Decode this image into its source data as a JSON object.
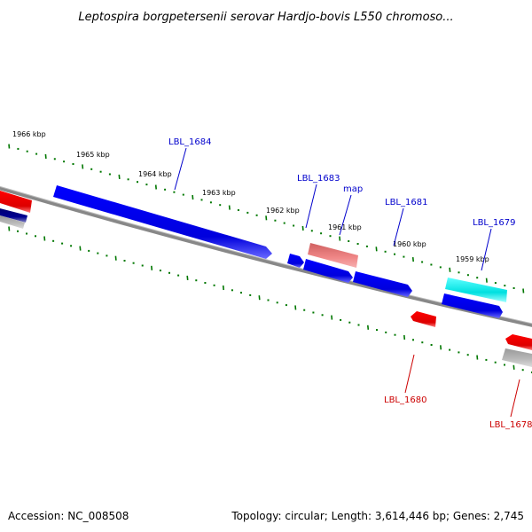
{
  "title": "Leptospira borgpetersenii serovar Hardjo-bovis L550 chromoso...",
  "tick_labels": [
    "1966 kbp",
    "1965 kbp",
    "1964 kbp",
    "1963 kbp",
    "1962 kbp",
    "1961 kbp",
    "1960 kbp",
    "1959 kbp"
  ],
  "gene_labels": {
    "LBL_1684": "LBL_1684",
    "LBL_1683": "LBL_1683",
    "map": "map",
    "LBL_1681": "LBL_1681",
    "LBL_1679": "LBL_1679",
    "LBL_1680": "LBL_1680",
    "LBL_1678": "LBL_1678"
  },
  "footer": {
    "accession": "Accession: NC_008508",
    "summary": "Topology: circular; Length: 3,614,446 bp; Genes: 2,745"
  },
  "colors": {
    "forward_gene": "#0000ee",
    "reverse_gene": "#ee0000",
    "map_gene": "#e87878",
    "rna_gene": "#00e5e5",
    "grey_gene": "#aaaaaa",
    "dark_gene": "#000080",
    "backbone": "#777777",
    "tick": "#007700",
    "forward_label": "#0000cc",
    "reverse_label": "#cc0000"
  }
}
